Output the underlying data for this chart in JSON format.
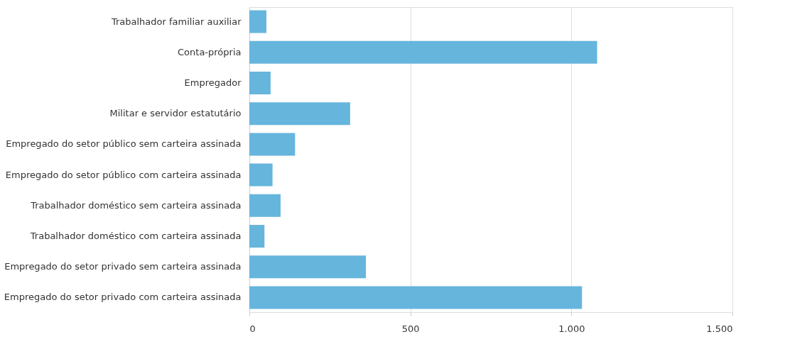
{
  "chart_data": {
    "type": "bar",
    "orientation": "horizontal",
    "categories": [
      "Trabalhador familiar auxiliar",
      "Conta-própria",
      "Empregador",
      "Militar e servidor estatutário",
      "Empregado do setor público sem carteira assinada",
      "Empregado do setor público com carteira assinada",
      "Trabalhador doméstico sem carteira assinada",
      "Trabalhador doméstico com carteira assinada",
      "Empregado do setor privado sem carteira assinada",
      "Empregado do setor privado com carteira assinada"
    ],
    "values": [
      53,
      1080,
      66,
      313,
      142,
      72,
      97,
      47,
      362,
      1033
    ],
    "color": "#66b5dc",
    "xlim": [
      0,
      1500
    ],
    "xticks": [
      0,
      500,
      {
        "value": 1000,
        "label": "1.000"
      },
      {
        "value": 1500,
        "label": "1.500"
      }
    ],
    "grid": "x"
  }
}
